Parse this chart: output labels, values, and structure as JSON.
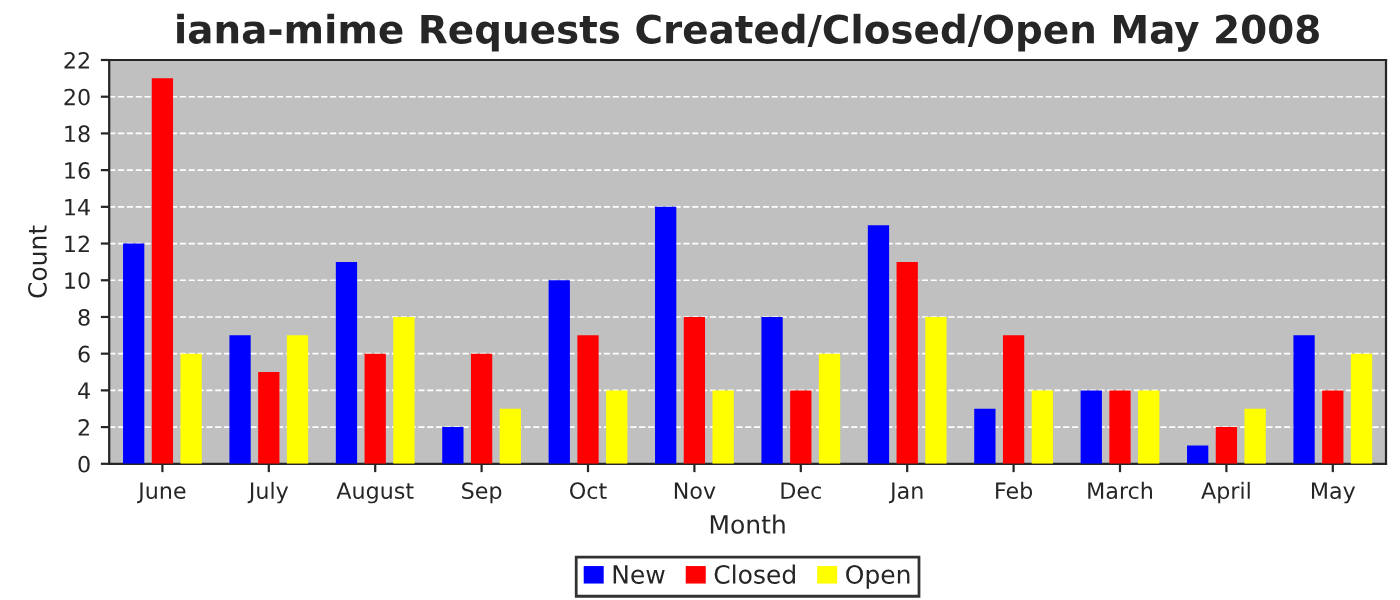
{
  "chart_data": {
    "type": "bar",
    "title": "iana-mime Requests Created/Closed/Open May 2008",
    "xlabel": "Month",
    "ylabel": "Count",
    "categories": [
      "June",
      "July",
      "August",
      "Sep",
      "Oct",
      "Nov",
      "Dec",
      "Jan",
      "Feb",
      "March",
      "April",
      "May"
    ],
    "series": [
      {
        "name": "New",
        "color": "#0000ff",
        "values": [
          12,
          7,
          11,
          2,
          10,
          14,
          8,
          13,
          3,
          4,
          1,
          7
        ]
      },
      {
        "name": "Closed",
        "color": "#ff0000",
        "values": [
          21,
          5,
          6,
          6,
          7,
          8,
          4,
          11,
          7,
          4,
          2,
          4
        ]
      },
      {
        "name": "Open",
        "color": "#ffff00",
        "values": [
          6,
          7,
          8,
          3,
          4,
          4,
          6,
          8,
          4,
          4,
          3,
          6
        ]
      }
    ],
    "ylim": [
      0,
      22
    ],
    "yticks": [
      0,
      2,
      4,
      6,
      8,
      10,
      12,
      14,
      16,
      18,
      20,
      22
    ],
    "grid": "y",
    "legend": "bottom"
  }
}
